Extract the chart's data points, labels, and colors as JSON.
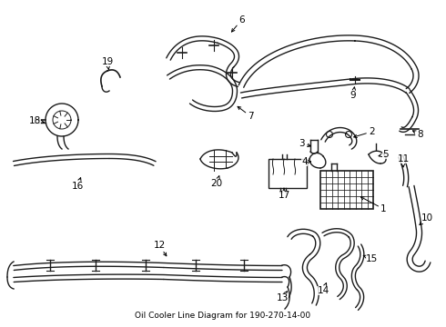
{
  "title": "Oil Cooler Line Diagram for 190-270-14-00",
  "bg_color": "#ffffff",
  "line_color": "#1a1a1a",
  "label_color": "#000000",
  "figsize": [
    4.9,
    3.6
  ],
  "dpi": 100,
  "lw": 1.0,
  "lw_thick": 1.5,
  "lw_hose": 1.2
}
